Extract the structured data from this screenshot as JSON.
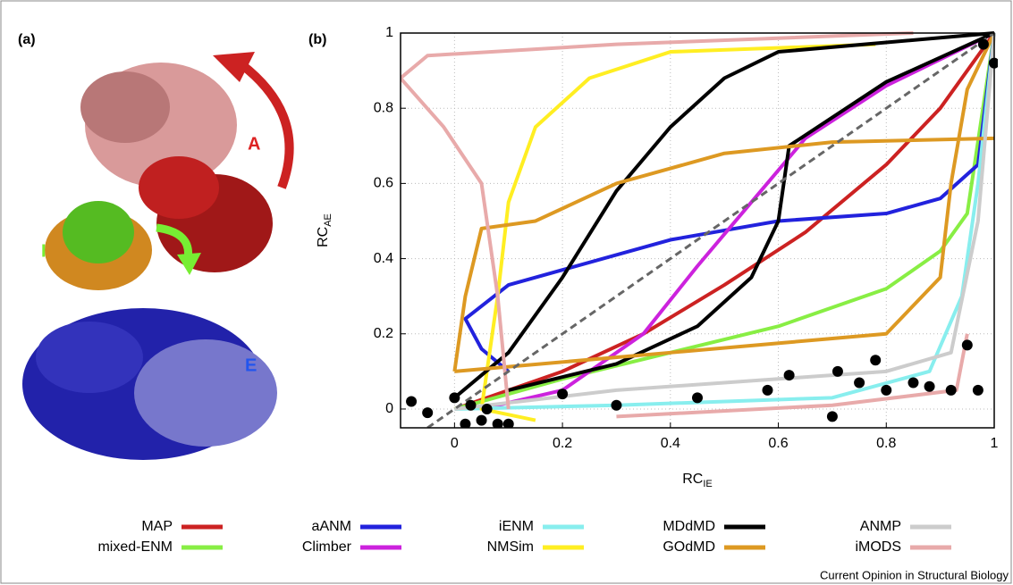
{
  "panel_a": {
    "label": "(a)",
    "domain_labels": {
      "A": "A",
      "I": "I",
      "E": "E"
    }
  },
  "chart_data": {
    "type": "line",
    "panel_label": "(b)",
    "x_label": {
      "main": "RC",
      "sub": "IE"
    },
    "y_label": {
      "main": "RC",
      "sub": "AE"
    },
    "xlim": [
      -0.1,
      1
    ],
    "ylim": [
      -0.05,
      1
    ],
    "xticks": [
      0,
      0.2,
      0.4,
      0.6,
      0.8,
      1
    ],
    "yticks": [
      0,
      0.2,
      0.4,
      0.6,
      0.8,
      1
    ],
    "grid": true,
    "reference_line": {
      "x": [
        -0.05,
        1
      ],
      "values": [
        -0.05,
        1
      ],
      "color": "#666666"
    },
    "series": [
      {
        "name": "MAP",
        "color": "#cc2222",
        "x": [
          0,
          0.2,
          0.35,
          0.5,
          0.65,
          0.8,
          0.9,
          1
        ],
        "values": [
          0,
          0.1,
          0.2,
          0.33,
          0.47,
          0.65,
          0.8,
          1
        ]
      },
      {
        "name": "mixed-ENM",
        "color": "#88ee44",
        "x": [
          0,
          0.2,
          0.4,
          0.6,
          0.8,
          0.9,
          0.95,
          1
        ],
        "values": [
          0,
          0.08,
          0.15,
          0.22,
          0.32,
          0.42,
          0.52,
          1
        ]
      },
      {
        "name": "aANM",
        "color": "#2222dd",
        "x": [
          0.1,
          0.05,
          0.02,
          0.1,
          0.2,
          0.4,
          0.6,
          0.8,
          0.9,
          0.97,
          1
        ],
        "values": [
          0.1,
          0.16,
          0.24,
          0.33,
          0.37,
          0.45,
          0.5,
          0.52,
          0.56,
          0.65,
          1
        ]
      },
      {
        "name": "Climber",
        "color": "#cc22dd",
        "x": [
          0.05,
          0.2,
          0.35,
          0.45,
          0.55,
          0.65,
          0.8,
          1
        ],
        "values": [
          0,
          0.05,
          0.2,
          0.38,
          0.55,
          0.72,
          0.86,
          1
        ]
      },
      {
        "name": "iENM",
        "color": "#88eeee",
        "x": [
          0,
          0.3,
          0.7,
          0.88,
          0.94,
          0.97,
          1
        ],
        "values": [
          0,
          0.01,
          0.03,
          0.1,
          0.3,
          0.6,
          1
        ]
      },
      {
        "name": "NMSim",
        "color": "#ffee22",
        "x": [
          0.15,
          0.05,
          0.08,
          0.1,
          0.15,
          0.25,
          0.4,
          0.78
        ],
        "values": [
          -0.03,
          0,
          0.3,
          0.55,
          0.75,
          0.88,
          0.95,
          0.97
        ]
      },
      {
        "name": "MDdMD",
        "color": "#000000",
        "x": [
          0,
          0.1,
          0.2,
          0.3,
          0.4,
          0.5,
          0.6,
          1,
          null,
          0.1,
          0.3,
          0.45,
          0.55,
          0.6,
          0.62,
          0.8,
          1
        ],
        "values": [
          0.03,
          0.15,
          0.35,
          0.58,
          0.75,
          0.88,
          0.95,
          1,
          null,
          0.05,
          0.12,
          0.22,
          0.35,
          0.5,
          0.7,
          0.87,
          1
        ]
      },
      {
        "name": "GOdMD",
        "color": "#dd9922",
        "x": [
          0,
          0.02,
          0.05,
          0.15,
          0.3,
          0.5,
          0.7,
          1,
          null,
          0,
          0.4,
          0.8,
          0.9,
          0.92,
          0.95,
          1
        ],
        "values": [
          0.1,
          0.3,
          0.48,
          0.5,
          0.6,
          0.68,
          0.71,
          0.72,
          null,
          0.1,
          0.15,
          0.2,
          0.35,
          0.6,
          0.85,
          1
        ]
      },
      {
        "name": "ANMP",
        "color": "#cccccc",
        "x": [
          0,
          0.3,
          0.6,
          0.8,
          0.92,
          0.97,
          1
        ],
        "values": [
          0,
          0.05,
          0.08,
          0.1,
          0.15,
          0.5,
          1
        ]
      },
      {
        "name": "iMODS",
        "color": "#e8aaaa",
        "x": [
          0.1,
          0.08,
          0.05,
          -0.02,
          -0.1,
          -0.05,
          0.3,
          0.85,
          null,
          0.3,
          0.7,
          0.93,
          0.95
        ],
        "values": [
          0,
          0.3,
          0.6,
          0.75,
          0.88,
          0.94,
          0.97,
          1,
          null,
          -0.02,
          0.01,
          0.05,
          0.2
        ]
      }
    ],
    "points": {
      "color": "#000000",
      "x": [
        -0.08,
        -0.05,
        0,
        0.02,
        0.05,
        0.08,
        0.1,
        0.03,
        0.06,
        0.2,
        0.3,
        0.45,
        0.58,
        0.62,
        0.7,
        0.71,
        0.75,
        0.78,
        0.8,
        0.85,
        0.88,
        0.92,
        0.95,
        0.97,
        0.98,
        1
      ],
      "y": [
        0.02,
        -0.01,
        0.03,
        -0.04,
        -0.03,
        -0.04,
        -0.04,
        0.01,
        0.0,
        0.04,
        0.01,
        0.03,
        0.05,
        0.09,
        -0.02,
        0.1,
        0.07,
        0.13,
        0.05,
        0.07,
        0.06,
        0.05,
        0.17,
        0.05,
        0.97,
        0.92
      ]
    }
  },
  "credit": "Current Opinion in Structural Biology"
}
